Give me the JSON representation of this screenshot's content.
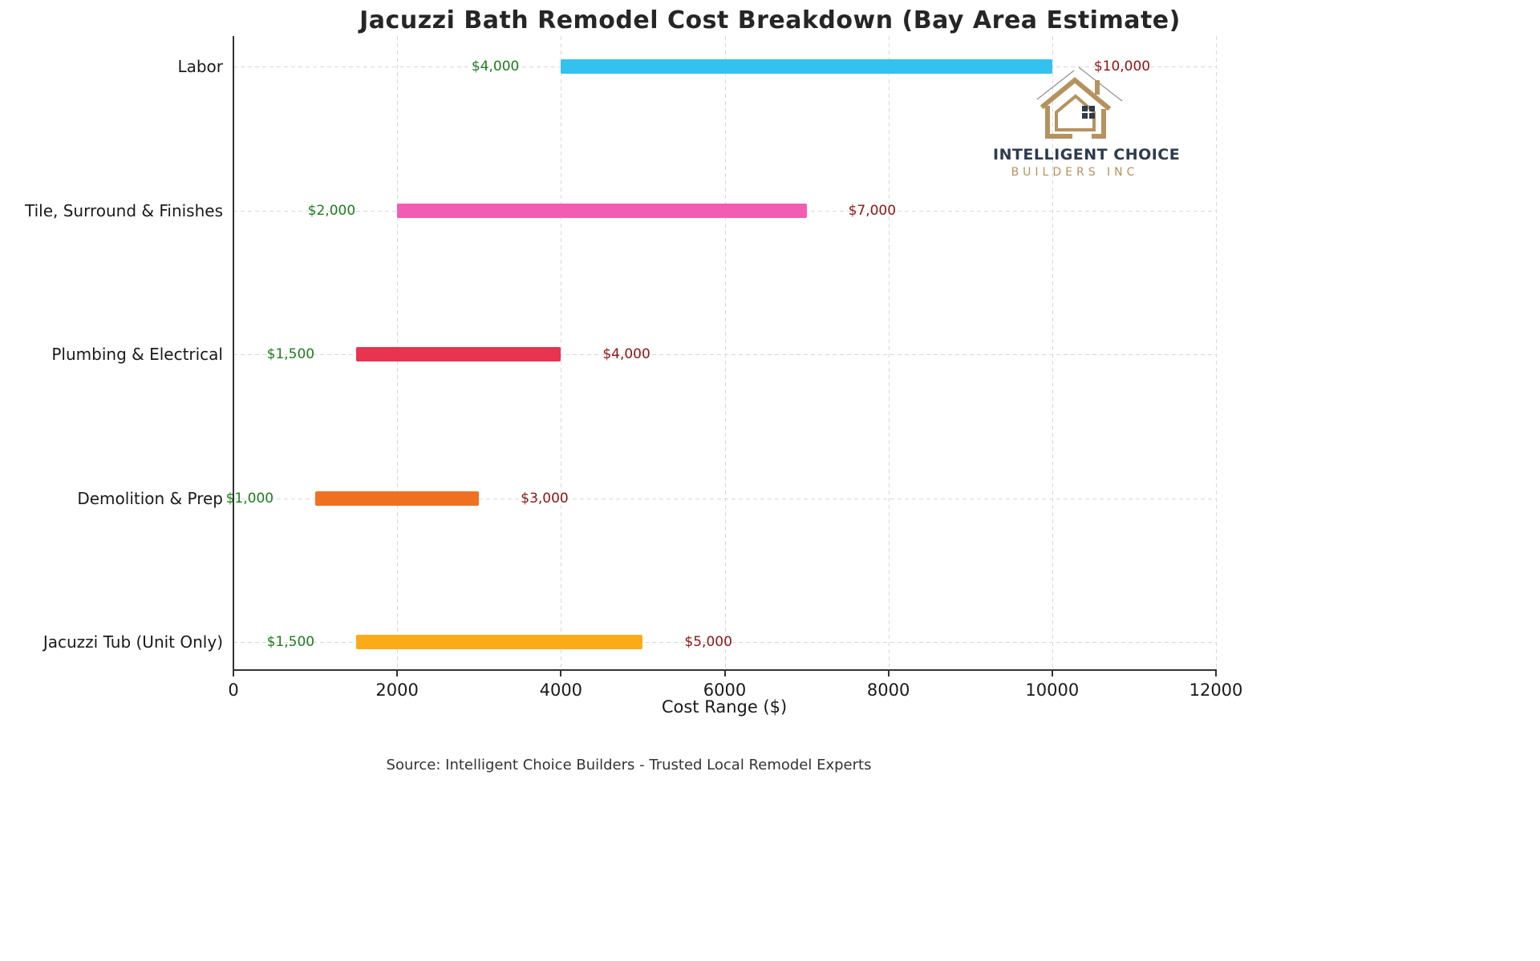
{
  "title": "Jacuzzi Bath Remodel Cost Breakdown (Bay Area Estimate)",
  "x_axis_title": "Cost Range ($)",
  "source_note": "Source: Intelligent Choice Builders - Trusted Local Remodel Experts",
  "logo": {
    "icon": "house-icon",
    "name": "INTELLIGENT CHOICE",
    "subtitle": "BUILDERS INC",
    "accent_color": "#b5925e",
    "text_color": "#2e3b4e"
  },
  "chart_data": {
    "type": "bar",
    "variant": "horizontal-range",
    "title": "Jacuzzi Bath Remodel Cost Breakdown (Bay Area Estimate)",
    "xlabel": "Cost Range ($)",
    "ylabel": "",
    "xlim": [
      0,
      12000
    ],
    "xticks": [
      0,
      2000,
      4000,
      6000,
      8000,
      10000,
      12000
    ],
    "grid": "dashed",
    "legend": "none",
    "categories": [
      "Labor",
      "Tile, Surround & Finishes",
      "Plumbing & Electrical",
      "Demolition & Prep",
      "Jacuzzi Tub (Unit Only)"
    ],
    "series": [
      {
        "name": "Cost range (min to max, USD)",
        "ranges": [
          [
            4000,
            10000
          ],
          [
            2000,
            7000
          ],
          [
            1500,
            4000
          ],
          [
            1000,
            3000
          ],
          [
            1500,
            5000
          ]
        ]
      }
    ],
    "min_labels": [
      "$4,000",
      "$2,000",
      "$1,500",
      "$1,000",
      "$1,500"
    ],
    "max_labels": [
      "$10,000",
      "$7,000",
      "$4,000",
      "$3,000",
      "$5,000"
    ],
    "bar_colors": [
      "#33c1f0",
      "#f45cb4",
      "#e8344e",
      "#f07022",
      "#fbab18"
    ],
    "min_label_color": "#1e7d1e",
    "max_label_color": "#8e1515"
  }
}
